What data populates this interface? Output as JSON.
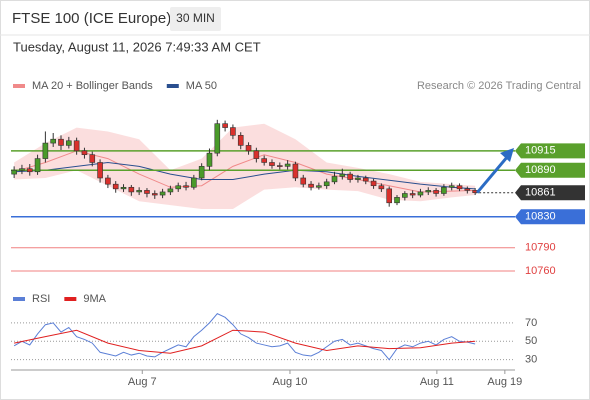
{
  "chart_data": {
    "type": "candlestick",
    "title": "FTSE 100 (ICE Europe)",
    "interval": "30 MIN",
    "timestamp": "Tuesday, August 11, 2026 7:49:33 AM CET",
    "credit": "Research © 2026 Trading Central",
    "legend": [
      {
        "name": "MA 20 + Bollinger Bands",
        "color": "#f08a8a"
      },
      {
        "name": "MA 50",
        "color": "#2a4f8f"
      }
    ],
    "up_color": "#4a9a2a",
    "down_color": "#d9302c",
    "candles": {
      "open": [
        10885,
        10890,
        10892,
        10888,
        10905,
        10925,
        10930,
        10922,
        10928,
        10915,
        10910,
        10900,
        10880,
        10872,
        10866,
        10868,
        10862,
        10864,
        10860,
        10858,
        10862,
        10866,
        10870,
        10868,
        10880,
        10895,
        10912,
        10950,
        10945,
        10935,
        10922,
        10915,
        10905,
        10900,
        10896,
        10895,
        10898,
        10880,
        10872,
        10868,
        10870,
        10875,
        10882,
        10885,
        10878,
        10880,
        10876,
        10870,
        10866,
        10848,
        10855,
        10860,
        10858,
        10862,
        10864,
        10860,
        10868,
        10870,
        10866,
        10864
      ],
      "high": [
        10895,
        10897,
        10898,
        10910,
        10940,
        10938,
        10935,
        10933,
        10932,
        10919,
        10914,
        10904,
        10884,
        10876,
        10872,
        10871,
        10868,
        10867,
        10864,
        10866,
        10870,
        10874,
        10875,
        10884,
        10899,
        10918,
        10955,
        10954,
        10949,
        10939,
        10926,
        10919,
        10909,
        10904,
        10900,
        10903,
        10901,
        10884,
        10876,
        10874,
        10879,
        10888,
        10892,
        10888,
        10884,
        10883,
        10879,
        10873,
        10869,
        10858,
        10863,
        10864,
        10866,
        10868,
        10867,
        10872,
        10874,
        10873,
        10869,
        10867
      ],
      "low": [
        10880,
        10885,
        10883,
        10884,
        10900,
        10920,
        10916,
        10918,
        10910,
        10905,
        10895,
        10874,
        10867,
        10861,
        10862,
        10857,
        10858,
        10855,
        10853,
        10854,
        10858,
        10862,
        10864,
        10865,
        10877,
        10890,
        10908,
        10940,
        10930,
        10917,
        10910,
        10900,
        10896,
        10892,
        10891,
        10891,
        10876,
        10868,
        10864,
        10865,
        10866,
        10872,
        10878,
        10874,
        10874,
        10872,
        10866,
        10862,
        10843,
        10845,
        10851,
        10854,
        10855,
        10858,
        10856,
        10857,
        10864,
        10863,
        10860,
        10858
      ],
      "close": [
        10890,
        10892,
        10888,
        10905,
        10925,
        10930,
        10922,
        10928,
        10915,
        10910,
        10900,
        10880,
        10872,
        10866,
        10868,
        10862,
        10864,
        10860,
        10858,
        10862,
        10866,
        10870,
        10868,
        10880,
        10895,
        10912,
        10950,
        10945,
        10935,
        10922,
        10915,
        10905,
        10900,
        10896,
        10895,
        10898,
        10880,
        10872,
        10868,
        10870,
        10875,
        10882,
        10885,
        10878,
        10880,
        10876,
        10870,
        10866,
        10848,
        10855,
        10860,
        10858,
        10862,
        10864,
        10860,
        10868,
        10870,
        10866,
        10864,
        10861
      ]
    },
    "bands": {
      "x": [
        0,
        4,
        8,
        12,
        16,
        20,
        24,
        28,
        32,
        36,
        40,
        44,
        48,
        52,
        56,
        59
      ],
      "upper": [
        10900,
        10925,
        10945,
        10940,
        10930,
        10890,
        10905,
        10945,
        10950,
        10930,
        10900,
        10893,
        10885,
        10875,
        10872,
        10870
      ],
      "lower": [
        10878,
        10880,
        10890,
        10870,
        10850,
        10845,
        10840,
        10840,
        10865,
        10868,
        10865,
        10863,
        10852,
        10850,
        10855,
        10858
      ],
      "ma20": [
        10888,
        10900,
        10915,
        10905,
        10885,
        10868,
        10870,
        10895,
        10910,
        10900,
        10885,
        10878,
        10870,
        10862,
        10863,
        10864
      ],
      "ma50": [
        10888,
        10890,
        10895,
        10900,
        10895,
        10885,
        10878,
        10878,
        10885,
        10890,
        10888,
        10882,
        10877,
        10872,
        10868,
        10866
      ]
    },
    "xlim": [
      -0.4,
      64.1
    ],
    "xticks": [
      {
        "value": 16.4,
        "label": "Aug 7"
      },
      {
        "value": 35.3,
        "label": "Aug 10"
      },
      {
        "value": 54.1,
        "label": "Aug 11"
      },
      {
        "value": 62.8,
        "label": "Aug 19"
      }
    ],
    "ylim": [
      10742,
      10987
    ],
    "levels": [
      {
        "value": 10915,
        "color": "#5aa02c",
        "box": true
      },
      {
        "value": 10890,
        "color": "#5aa02c",
        "box": true
      },
      {
        "value": 10861,
        "color": "#333333",
        "box": true
      },
      {
        "value": 10830,
        "color": "#3a6fd8",
        "box": true
      },
      {
        "value": 10790,
        "color": "#e04040",
        "box": false
      },
      {
        "value": 10760,
        "color": "#e04040",
        "box": false
      }
    ],
    "rsi": {
      "legend": [
        {
          "name": "RSI",
          "color": "#5b7fd6"
        },
        {
          "name": "9MA",
          "color": "#e02020"
        }
      ],
      "ylim": [
        22,
        84
      ],
      "yticks": [
        70,
        50,
        30
      ],
      "values": [
        45,
        50,
        46,
        58,
        68,
        70,
        60,
        65,
        55,
        52,
        48,
        38,
        36,
        34,
        38,
        35,
        37,
        34,
        33,
        38,
        42,
        46,
        44,
        55,
        62,
        70,
        80,
        76,
        68,
        58,
        54,
        48,
        46,
        44,
        45,
        48,
        38,
        35,
        34,
        38,
        44,
        50,
        52,
        46,
        48,
        45,
        42,
        40,
        30,
        42,
        46,
        44,
        48,
        50,
        46,
        52,
        55,
        50,
        49,
        47
      ],
      "ma_x": [
        0,
        4,
        8,
        12,
        16,
        20,
        24,
        28,
        32,
        36,
        40,
        44,
        48,
        52,
        56,
        59
      ],
      "ma": [
        48,
        55,
        62,
        48,
        40,
        37,
        45,
        62,
        60,
        48,
        40,
        45,
        42,
        43,
        48,
        50
      ]
    }
  }
}
